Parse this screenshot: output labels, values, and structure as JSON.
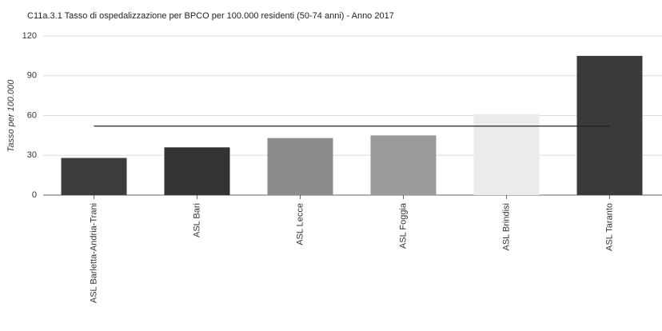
{
  "chart_data": {
    "type": "bar",
    "title": "C11a.3.1 Tasso di ospedalizzazione per BPCO per 100.000 residenti (50-74 anni) - Anno 2017",
    "y_label": "Tasso per 100.000",
    "categories": [
      "ASL Barletta-Andria-Trani",
      "ASL Bari",
      "ASL Lecce",
      "ASL Foggia",
      "ASL Brindisi",
      "ASL Taranto"
    ],
    "values": [
      28,
      36,
      43,
      45,
      61,
      105
    ],
    "colors": [
      "#3d3d3d",
      "#333333",
      "#8c8c8c",
      "#9b9b9b",
      "#ebebeb",
      "#3a3a3a"
    ],
    "reference_line": 52,
    "ylim": [
      0,
      120
    ],
    "yticks": [
      0,
      30,
      60,
      90,
      120
    ],
    "grid": true
  }
}
